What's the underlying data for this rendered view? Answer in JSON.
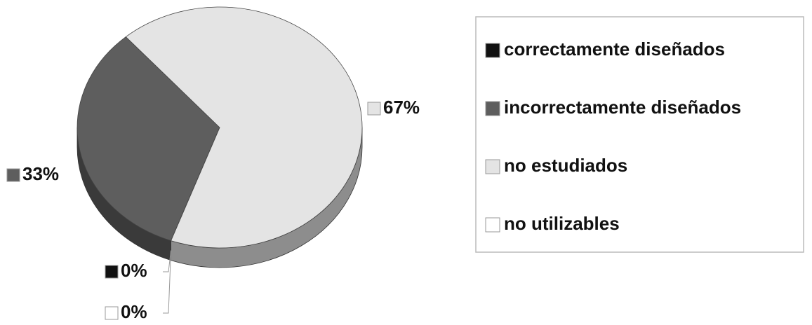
{
  "chart_data": {
    "type": "pie",
    "categories": [
      "correctamente diseñados",
      "incorrectamente diseñados",
      "no estudiados",
      "no utilizables"
    ],
    "values": [
      0,
      33,
      67,
      0
    ],
    "value_labels": [
      "0%",
      "33%",
      "67%",
      "0%"
    ],
    "colors": [
      "#111111",
      "#5e5e5e",
      "#e4e4e4",
      "#ffffff"
    ],
    "legend": "right"
  }
}
